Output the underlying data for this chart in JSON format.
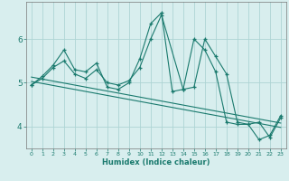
{
  "xlabel": "Humidex (Indice chaleur)",
  "xlim": [
    -0.5,
    23.5
  ],
  "ylim": [
    3.5,
    6.85
  ],
  "yticks": [
    4,
    5,
    6
  ],
  "xticks": [
    0,
    1,
    2,
    3,
    4,
    5,
    6,
    7,
    8,
    9,
    10,
    11,
    12,
    13,
    14,
    15,
    16,
    17,
    18,
    19,
    20,
    21,
    22,
    23
  ],
  "bg_color": "#d8eeee",
  "grid_color": "#aed4d4",
  "line_color": "#1a7a6e",
  "series1_x": [
    0,
    1,
    2,
    3,
    4,
    5,
    6,
    7,
    8,
    9,
    10,
    11,
    12,
    13,
    14,
    15,
    16,
    17,
    18,
    19,
    20,
    21,
    22,
    23
  ],
  "series1_y": [
    4.95,
    5.15,
    5.4,
    5.75,
    5.3,
    5.25,
    5.45,
    4.9,
    4.85,
    5.0,
    5.55,
    6.35,
    6.6,
    4.8,
    4.85,
    6.0,
    5.75,
    5.25,
    4.1,
    4.05,
    4.05,
    3.7,
    3.8,
    4.25
  ],
  "series2_x": [
    0,
    1,
    2,
    3,
    4,
    5,
    6,
    7,
    8,
    9,
    10,
    11,
    12,
    14,
    15,
    16,
    17,
    18,
    19,
    20,
    21,
    22,
    23
  ],
  "series2_y": [
    4.95,
    5.1,
    5.35,
    5.5,
    5.2,
    5.1,
    5.3,
    5.0,
    4.95,
    5.05,
    5.35,
    6.0,
    6.55,
    4.85,
    4.9,
    6.0,
    5.6,
    5.2,
    4.1,
    4.05,
    4.1,
    3.75,
    4.2
  ],
  "trend1_x": [
    0,
    23
  ],
  "trend1_y": [
    5.13,
    4.08
  ],
  "trend2_x": [
    0,
    23
  ],
  "trend2_y": [
    5.03,
    3.98
  ]
}
